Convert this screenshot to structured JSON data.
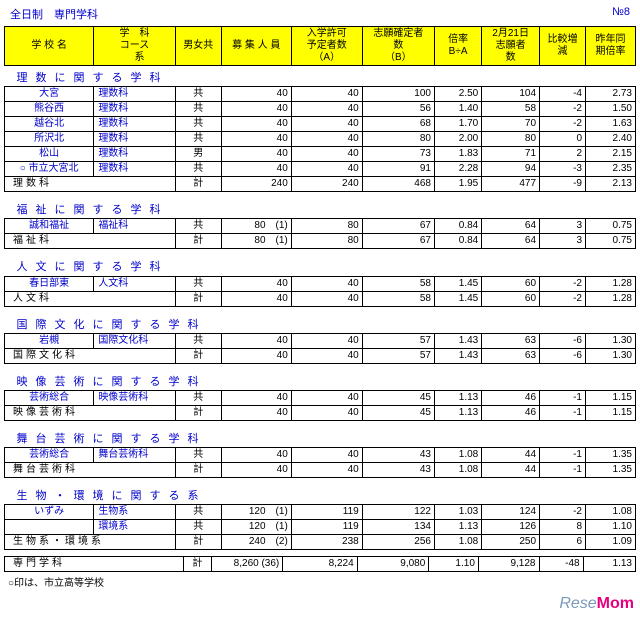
{
  "pg": {
    "l": "全日制　専門学科",
    "r": "№8"
  },
  "h": [
    "学 校 名",
    "学　科\nコース\n　系",
    "男女共",
    "募 集 人 員",
    "入学許可\n予定者数\n（A）",
    "志願確定者\n数\n（B）",
    "倍率\nB÷A",
    "2月21日\n志願者\n数",
    "比較増\n減",
    "昨年同\n期倍率"
  ],
  "sec": [
    {
      "t": "理数に関する学科",
      "r": [
        [
          "大宮",
          "理数科",
          "共",
          "40",
          "40",
          "100",
          "2.50",
          "104",
          "-4",
          "2.73"
        ],
        [
          "熊谷西",
          "理数科",
          "共",
          "40",
          "40",
          "56",
          "1.40",
          "58",
          "-2",
          "1.50"
        ],
        [
          "越谷北",
          "理数科",
          "共",
          "40",
          "40",
          "68",
          "1.70",
          "70",
          "-2",
          "1.63"
        ],
        [
          "所沢北",
          "理数科",
          "共",
          "40",
          "40",
          "80",
          "2.00",
          "80",
          "0",
          "2.40"
        ],
        [
          "松山",
          "理数科",
          "男",
          "40",
          "40",
          "73",
          "1.83",
          "71",
          "2",
          "2.15"
        ],
        [
          "○ 市立大宮北",
          "理数科",
          "共",
          "40",
          "40",
          "91",
          "2.28",
          "94",
          "-3",
          "2.35"
        ]
      ],
      "s": [
        "理数科",
        "計",
        "240",
        "240",
        "468",
        "1.95",
        "477",
        "-9",
        "2.13"
      ]
    },
    {
      "t": "福祉に関する学科",
      "r": [
        [
          "誠和福祉",
          "福祉科",
          "共",
          "80　(1)",
          "80",
          "67",
          "0.84",
          "64",
          "3",
          "0.75"
        ]
      ],
      "s": [
        "福祉科",
        "計",
        "80　(1)",
        "80",
        "67",
        "0.84",
        "64",
        "3",
        "0.75"
      ]
    },
    {
      "t": "人文に関する学科",
      "r": [
        [
          "春日部東",
          "人文科",
          "共",
          "40",
          "40",
          "58",
          "1.45",
          "60",
          "-2",
          "1.28"
        ]
      ],
      "s": [
        "人文科",
        "計",
        "40",
        "40",
        "58",
        "1.45",
        "60",
        "-2",
        "1.28"
      ]
    },
    {
      "t": "国際文化に関する学科",
      "r": [
        [
          "岩槻",
          "国際文化科",
          "共",
          "40",
          "40",
          "57",
          "1.43",
          "63",
          "-6",
          "1.30"
        ]
      ],
      "s": [
        "国際文化科",
        "計",
        "40",
        "40",
        "57",
        "1.43",
        "63",
        "-6",
        "1.30"
      ]
    },
    {
      "t": "映像芸術に関する学科",
      "r": [
        [
          "芸術総合",
          "映像芸術科",
          "共",
          "40",
          "40",
          "45",
          "1.13",
          "46",
          "-1",
          "1.15"
        ]
      ],
      "s": [
        "映像芸術科",
        "計",
        "40",
        "40",
        "45",
        "1.13",
        "46",
        "-1",
        "1.15"
      ]
    },
    {
      "t": "舞台芸術に関する学科",
      "r": [
        [
          "芸術総合",
          "舞台芸術科",
          "共",
          "40",
          "40",
          "43",
          "1.08",
          "44",
          "-1",
          "1.35"
        ]
      ],
      "s": [
        "舞台芸術科",
        "計",
        "40",
        "40",
        "43",
        "1.08",
        "44",
        "-1",
        "1.35"
      ]
    },
    {
      "t": "生物・環境に関する系",
      "r": [
        [
          "いずみ",
          "生物系",
          "共",
          "120　(1)",
          "119",
          "122",
          "1.03",
          "124",
          "-2",
          "1.08"
        ],
        [
          "",
          "環境系",
          "共",
          "120　(1)",
          "119",
          "134",
          "1.13",
          "126",
          "8",
          "1.10"
        ]
      ],
      "s": [
        "生物系・環境系",
        "計",
        "240　(2)",
        "238",
        "256",
        "1.08",
        "250",
        "6",
        "1.09"
      ]
    }
  ],
  "tot": [
    "専門学科",
    "計",
    "8,260 (36)",
    "8,224",
    "9,080",
    "1.10",
    "9,128",
    "-48",
    "1.13"
  ],
  "note": "○印は、市立高等学校",
  "wm1": "Rese",
  "wm2": "Mom"
}
